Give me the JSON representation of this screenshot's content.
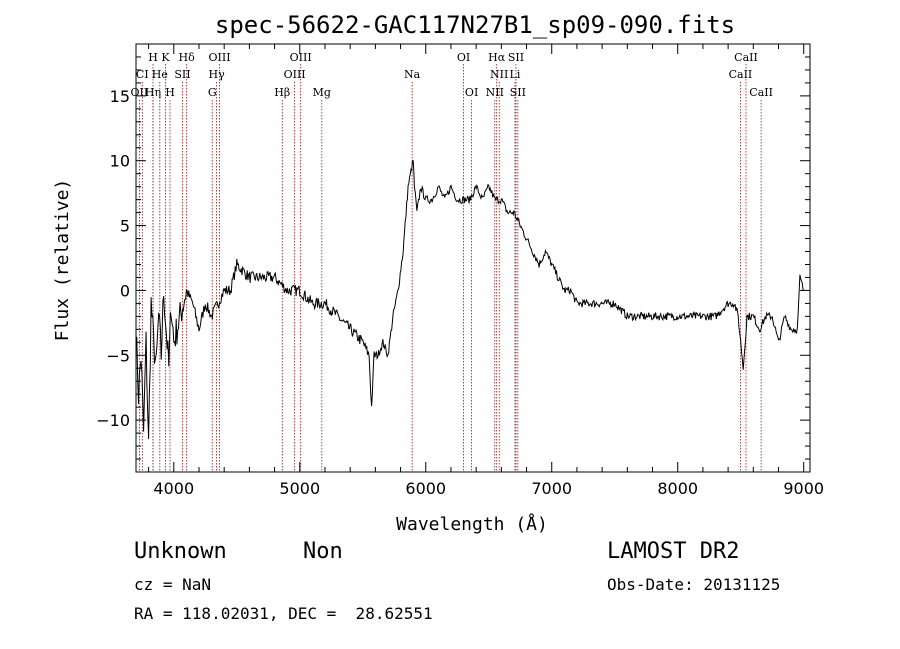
{
  "chart_data": {
    "type": "line",
    "title": "spec-56622-GAC117N27B1_sp09-090.fits",
    "xlabel": "Wavelength (Å)",
    "ylabel": "Flux (relative)",
    "xlim": [
      3700,
      9050
    ],
    "ylim": [
      -14,
      19
    ],
    "xticks": [
      4000,
      5000,
      6000,
      7000,
      8000,
      9000
    ],
    "yticks": [
      -10,
      -5,
      0,
      5,
      10,
      15
    ],
    "grid": false,
    "line_color": "#000000",
    "marker_color": "#8b1a1a",
    "series": [
      {
        "x": [
          3700,
          3720,
          3740,
          3760,
          3780,
          3800,
          3820,
          3840,
          3860,
          3880,
          3900,
          3920,
          3940,
          3960,
          3980,
          4000,
          4050,
          4100,
          4150,
          4200,
          4250,
          4300,
          4350,
          4400,
          4450,
          4500,
          4600,
          4700,
          4800,
          4900,
          5000,
          5100,
          5200,
          5300,
          5400,
          5500,
          5550,
          5570,
          5590,
          5620,
          5660,
          5700,
          5740,
          5780,
          5820,
          5860,
          5900,
          5910,
          5930,
          5960,
          6000,
          6050,
          6100,
          6150,
          6200,
          6250,
          6300,
          6350,
          6400,
          6450,
          6500,
          6550,
          6600,
          6650,
          6700,
          6750,
          6800,
          6850,
          6900,
          6950,
          7000,
          7050,
          7100,
          7150,
          7200,
          7300,
          7400,
          7500,
          7600,
          7700,
          7800,
          7900,
          8000,
          8100,
          8200,
          8300,
          8400,
          8450,
          8480,
          8500,
          8520,
          8550,
          8600,
          8650,
          8700,
          8750,
          8800,
          8850,
          8900,
          8950,
          8970,
          9000
        ],
        "y": [
          -3,
          -8,
          -5,
          -11,
          -4,
          -12,
          -1,
          -4,
          -6,
          -2,
          -5,
          0,
          -3,
          -6,
          -1,
          -4,
          -2,
          0,
          -1,
          -3,
          -1,
          -2,
          -1,
          0,
          0,
          2,
          1,
          1,
          1,
          0,
          0,
          -1,
          -1,
          -2,
          -3,
          -4,
          -5,
          -9,
          -5,
          -5,
          -4,
          -5,
          -2,
          0,
          3,
          8,
          10,
          8,
          6,
          8,
          7,
          7,
          8,
          7,
          8,
          7,
          7,
          7,
          8,
          7,
          8,
          7,
          7,
          6,
          6,
          5,
          4,
          3,
          2,
          3,
          2,
          1,
          0,
          0,
          -1,
          -1,
          -1,
          -1,
          -2,
          -2,
          -2,
          -2,
          -2,
          -2,
          -2,
          -2,
          -1,
          -1,
          -2,
          -4,
          -6,
          -2,
          -2,
          -3,
          -2,
          -2,
          -4,
          -2,
          -3,
          -3,
          1,
          0
        ]
      }
    ],
    "spectral_lines": [
      {
        "label": "H",
        "x": 3835,
        "row": 1
      },
      {
        "label": "K",
        "x": 3934,
        "row": 1
      },
      {
        "label": "Hδ",
        "x": 4102,
        "row": 1
      },
      {
        "label": "OIII",
        "x": 4363,
        "row": 1
      },
      {
        "label": "OIII",
        "x": 5007,
        "row": 1
      },
      {
        "label": "OI",
        "x": 6300,
        "row": 1
      },
      {
        "label": "Hα",
        "x": 6563,
        "row": 1
      },
      {
        "label": "SII",
        "x": 6716,
        "row": 1
      },
      {
        "label": "CaII",
        "x": 8542,
        "row": 1
      },
      {
        "label": "CI",
        "x": 3750,
        "row": 2
      },
      {
        "label": "He",
        "x": 3889,
        "row": 2
      },
      {
        "label": "SII",
        "x": 4069,
        "row": 2
      },
      {
        "label": "Hγ",
        "x": 4340,
        "row": 2
      },
      {
        "label": "OIII",
        "x": 4959,
        "row": 2
      },
      {
        "label": "Na",
        "x": 5892,
        "row": 2
      },
      {
        "label": "NII",
        "x": 6583,
        "row": 2
      },
      {
        "label": "Li",
        "x": 6708,
        "row": 2
      },
      {
        "label": "CaII",
        "x": 8498,
        "row": 2
      },
      {
        "label": "OII",
        "x": 3727,
        "row": 3
      },
      {
        "label": "Hη",
        "x": 3835,
        "row": 3
      },
      {
        "label": "H",
        "x": 3970,
        "row": 3
      },
      {
        "label": "G",
        "x": 4305,
        "row": 3
      },
      {
        "label": "Hβ",
        "x": 4861,
        "row": 3
      },
      {
        "label": "Mg",
        "x": 5175,
        "row": 3
      },
      {
        "label": "OI",
        "x": 6364,
        "row": 3
      },
      {
        "label": "NII",
        "x": 6548,
        "row": 3
      },
      {
        "label": "SII",
        "x": 6731,
        "row": 3
      },
      {
        "label": "CaII",
        "x": 8662,
        "row": 3
      }
    ]
  },
  "info": {
    "class": "Unknown",
    "subclass": "Non",
    "survey": "LAMOST DR2",
    "cz": "cz = NaN",
    "obs_date": "Obs-Date: 20131125",
    "coords": "RA = 118.02031, DEC =  28.62551"
  }
}
